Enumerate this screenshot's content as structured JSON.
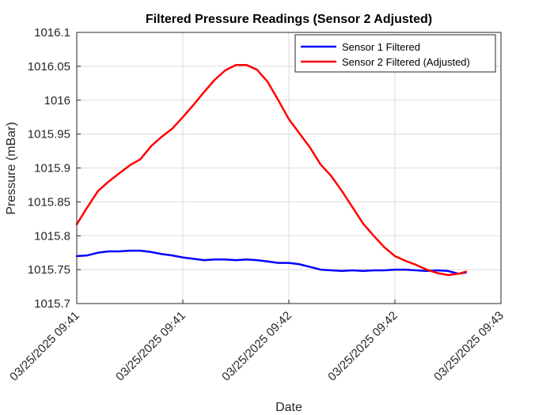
{
  "chart_data": {
    "type": "line",
    "title": "Filtered Pressure Readings (Sensor 2 Adjusted)",
    "xlabel": "Date",
    "ylabel": "Pressure (mBar)",
    "ylim": [
      1015.7,
      1016.1
    ],
    "y_ticks": [
      "1015.7",
      "1015.75",
      "1015.8",
      "1015.85",
      "1015.9",
      "1015.95",
      "1016",
      "1016.05",
      "1016.1"
    ],
    "x_ticks": [
      "03/25/2025 09:41",
      "03/25/2025 09:41",
      "03/25/2025 09:42",
      "03/25/2025 09:42",
      "03/25/2025 09:43"
    ],
    "x_tick_note": "x axis spans 0 to 4 tick intervals; data runs from 0 to about 3.67",
    "xlim": [
      0,
      4
    ],
    "grid": true,
    "legend_position": "top-right",
    "series": [
      {
        "name": "Sensor 1 Filtered",
        "color": "#0000ff",
        "x": [
          0,
          0.1,
          0.2,
          0.3,
          0.4,
          0.5,
          0.6,
          0.7,
          0.8,
          0.9,
          1.0,
          1.1,
          1.2,
          1.3,
          1.4,
          1.5,
          1.6,
          1.7,
          1.8,
          1.9,
          2.0,
          2.1,
          2.2,
          2.3,
          2.4,
          2.5,
          2.6,
          2.7,
          2.8,
          2.9,
          3.0,
          3.1,
          3.2,
          3.3,
          3.4,
          3.5,
          3.6,
          3.67
        ],
        "y": [
          1015.77,
          1015.771,
          1015.775,
          1015.777,
          1015.777,
          1015.778,
          1015.778,
          1015.776,
          1015.773,
          1015.771,
          1015.768,
          1015.766,
          1015.764,
          1015.765,
          1015.765,
          1015.764,
          1015.765,
          1015.764,
          1015.762,
          1015.76,
          1015.76,
          1015.758,
          1015.754,
          1015.75,
          1015.749,
          1015.748,
          1015.749,
          1015.748,
          1015.749,
          1015.749,
          1015.75,
          1015.75,
          1015.749,
          1015.748,
          1015.749,
          1015.748,
          1015.744,
          1015.746
        ]
      },
      {
        "name": "Sensor 2 Filtered (Adjusted)",
        "color": "#ff0000",
        "x": [
          0,
          0.1,
          0.2,
          0.3,
          0.4,
          0.5,
          0.6,
          0.7,
          0.8,
          0.9,
          1.0,
          1.1,
          1.2,
          1.3,
          1.4,
          1.5,
          1.6,
          1.7,
          1.8,
          1.9,
          2.0,
          2.1,
          2.2,
          2.3,
          2.4,
          2.5,
          2.6,
          2.7,
          2.8,
          2.9,
          3.0,
          3.1,
          3.2,
          3.3,
          3.4,
          3.5,
          3.6,
          3.67
        ],
        "y": [
          1015.817,
          1015.842,
          1015.866,
          1015.88,
          1015.892,
          1015.904,
          1015.913,
          1015.932,
          1015.946,
          1015.958,
          1015.975,
          1015.993,
          1016.012,
          1016.03,
          1016.044,
          1016.052,
          1016.052,
          1016.045,
          1016.027,
          1016.0,
          1015.972,
          1015.951,
          1015.93,
          1015.905,
          1015.888,
          1015.866,
          1015.842,
          1015.818,
          1015.8,
          1015.783,
          1015.77,
          1015.763,
          1015.757,
          1015.75,
          1015.745,
          1015.742,
          1015.744,
          1015.747
        ]
      }
    ]
  }
}
